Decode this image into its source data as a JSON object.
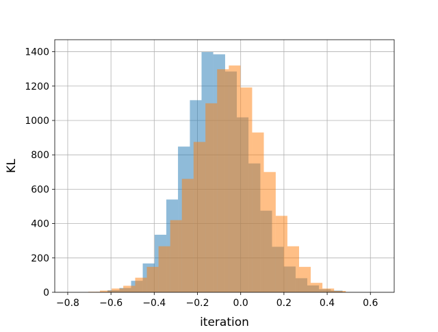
{
  "chart_data": {
    "type": "bar",
    "subtype": "histogram",
    "title": "",
    "xlabel": "iteration",
    "ylabel": "KL",
    "xlim": [
      -0.86,
      0.71
    ],
    "ylim": [
      0,
      1470
    ],
    "xticks": [
      -0.8,
      -0.6,
      -0.4,
      -0.2,
      0.0,
      0.2,
      0.4,
      0.6
    ],
    "xtick_labels": [
      "−0.8",
      "−0.6",
      "−0.4",
      "−0.2",
      "0.0",
      "0.2",
      "0.4",
      "0.6"
    ],
    "yticks": [
      0,
      200,
      400,
      600,
      800,
      1000,
      1200,
      1400
    ],
    "ytick_labels": [
      "0",
      "200",
      "400",
      "600",
      "800",
      "1000",
      "1200",
      "1400"
    ],
    "grid": true,
    "legend": false,
    "opacity": 0.5,
    "series": [
      {
        "color": "#1f77b4",
        "bin_edges": [
          -0.67,
          -0.616,
          -0.561,
          -0.507,
          -0.453,
          -0.398,
          -0.344,
          -0.29,
          -0.235,
          -0.181,
          -0.127,
          -0.072,
          -0.018,
          0.036,
          0.091,
          0.145,
          0.199,
          0.254,
          0.308,
          0.362,
          0.417,
          0.471
        ],
        "counts": [
          2,
          12,
          25,
          67,
          168,
          335,
          540,
          848,
          1118,
          1398,
          1385,
          1285,
          1018,
          750,
          475,
          265,
          150,
          82,
          40,
          18,
          10
        ]
      },
      {
        "color": "#ff7f0e",
        "bin_edges": [
          -0.705,
          -0.651,
          -0.597,
          -0.543,
          -0.488,
          -0.434,
          -0.38,
          -0.326,
          -0.272,
          -0.218,
          -0.163,
          -0.109,
          -0.055,
          -0.001,
          0.053,
          0.107,
          0.162,
          0.216,
          0.27,
          0.324,
          0.378,
          0.432,
          0.486
        ],
        "counts": [
          3,
          10,
          22,
          38,
          85,
          148,
          268,
          420,
          660,
          875,
          1100,
          1298,
          1320,
          1192,
          930,
          700,
          445,
          268,
          148,
          55,
          22,
          8
        ]
      }
    ]
  }
}
